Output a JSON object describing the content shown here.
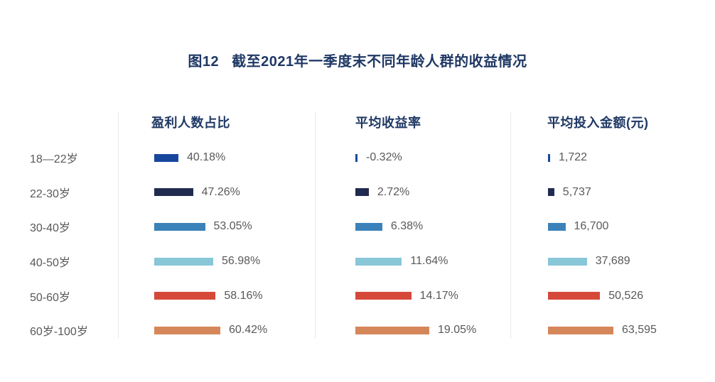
{
  "title": {
    "figure_label": "图12",
    "text": "截至2021年一季度末不同年龄人群的收益情况"
  },
  "chart_data": {
    "type": "bar",
    "orientation": "horizontal",
    "title": "图12 截至2021年一季度末不同年龄人群的收益情况",
    "grid": false,
    "legend_position": "none",
    "categories": [
      "18—22岁",
      "22-30岁",
      "30-40岁",
      "40-50岁",
      "50-60岁",
      "60岁-100岁"
    ],
    "series": [
      {
        "name": "盈利人数占比",
        "unit": "%",
        "values": [
          40.18,
          47.26,
          53.05,
          56.98,
          58.16,
          60.42
        ],
        "labels": [
          "40.18%",
          "47.26%",
          "53.05%",
          "56.98%",
          "58.16%",
          "60.42%"
        ]
      },
      {
        "name": "平均收益率",
        "unit": "%",
        "values": [
          -0.32,
          2.72,
          6.38,
          11.64,
          14.17,
          19.05
        ],
        "labels": [
          "-0.32%",
          "2.72%",
          "6.38%",
          "11.64%",
          "14.17%",
          "19.05%"
        ]
      },
      {
        "name": "平均投入金额(元)",
        "unit": "元",
        "values": [
          1722,
          5737,
          16700,
          37689,
          50526,
          63595
        ],
        "labels": [
          "1,722",
          "5,737",
          "16,700",
          "37,689",
          "50,526",
          "63,595"
        ]
      }
    ],
    "bar_colors": [
      "#17479d",
      "#212b4f",
      "#3b82ba",
      "#88c6d8",
      "#d6493a",
      "#d5875a"
    ]
  },
  "colors": {
    "title_text": "#1f3864",
    "header_text": "#1f3864",
    "label_text": "#595959",
    "value_text": "#595959",
    "divider": "#e9e9e9",
    "background": "#ffffff"
  }
}
